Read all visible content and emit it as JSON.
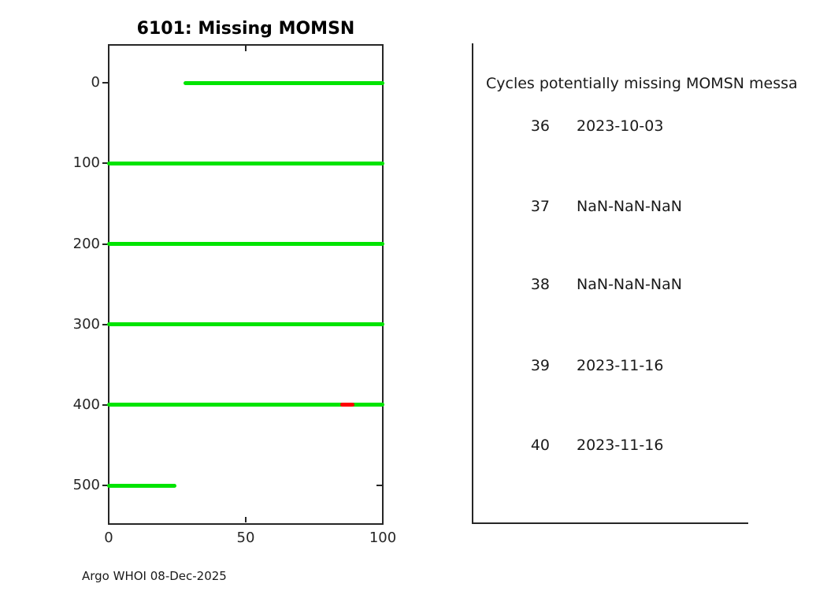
{
  "figure": {
    "title": "6101: Missing MOMSN",
    "footer": "Argo WHOI 08-Dec-2025"
  },
  "chart_data": {
    "type": "line",
    "title": "6101: Missing MOMSN",
    "xlabel": "",
    "ylabel": "",
    "xlim": [
      0,
      100
    ],
    "ylim": [
      -47,
      547
    ],
    "y_axis_inverted": true,
    "grid": false,
    "legend": null,
    "x_tick_labels": [
      "0",
      "50",
      "100"
    ],
    "x_tick_values": [
      0,
      50,
      100
    ],
    "y_tick_labels": [
      "0",
      "100",
      "200",
      "300",
      "400",
      "500"
    ],
    "y_tick_values": [
      0,
      100,
      200,
      300,
      400,
      500
    ],
    "series": [
      {
        "name": "received-momsn-lines",
        "color": "#00e400",
        "style": "thick dotted horizontal segments",
        "segments": [
          {
            "y": 0,
            "x": [
              28,
              100
            ]
          },
          {
            "y": 100,
            "x": [
              0,
              100
            ]
          },
          {
            "y": 200,
            "x": [
              0,
              100
            ]
          },
          {
            "y": 300,
            "x": [
              0,
              100
            ]
          },
          {
            "y": 400,
            "x": [
              0,
              100
            ]
          },
          {
            "y": 500,
            "x": [
              0,
              24
            ]
          }
        ]
      },
      {
        "name": "missing-momsn-lines",
        "color": "#ff0000",
        "style": "thick horizontal segment",
        "segments": [
          {
            "y": 400,
            "x": [
              85,
              89
            ]
          }
        ]
      }
    ]
  },
  "panel": {
    "header": "Cycles potentially missing MOMSN messa",
    "rows": [
      {
        "cycle": "36",
        "date": "2023-10-03"
      },
      {
        "cycle": "37",
        "date": "NaN-NaN-NaN"
      },
      {
        "cycle": "38",
        "date": "NaN-NaN-NaN"
      },
      {
        "cycle": "39",
        "date": "2023-11-16"
      },
      {
        "cycle": "40",
        "date": "2023-11-16"
      }
    ]
  }
}
